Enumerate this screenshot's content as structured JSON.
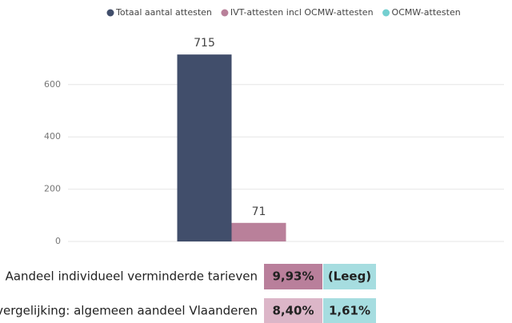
{
  "chart_data": {
    "type": "bar",
    "categories": [
      null
    ],
    "series": [
      {
        "name": "Totaal aantal attesten",
        "color": "#414e6b",
        "values": [
          715
        ]
      },
      {
        "name": "IVT-attesten incl OCMW-attesten",
        "color": "#b9809a",
        "values": [
          71
        ]
      },
      {
        "name": "OCMW-attesten",
        "color": "#74cfd0",
        "values": [
          null
        ]
      }
    ],
    "ylim": [
      0,
      740
    ],
    "yticks": [
      0,
      200,
      400,
      600
    ],
    "grid": true,
    "legend": "top"
  },
  "table": {
    "rows": [
      {
        "label": "Aandeel individueel verminderde tarieven",
        "cells": [
          "9,93%",
          "(Leeg)"
        ],
        "colors": [
          "#b97f9b",
          "#a6dde0"
        ]
      },
      {
        "label": "Ter vergelijking: algemeen aandeel Vlaanderen",
        "cells": [
          "8,40%",
          "1,61%"
        ],
        "colors": [
          "#dcb6c8",
          "#a6dde0"
        ]
      }
    ]
  }
}
